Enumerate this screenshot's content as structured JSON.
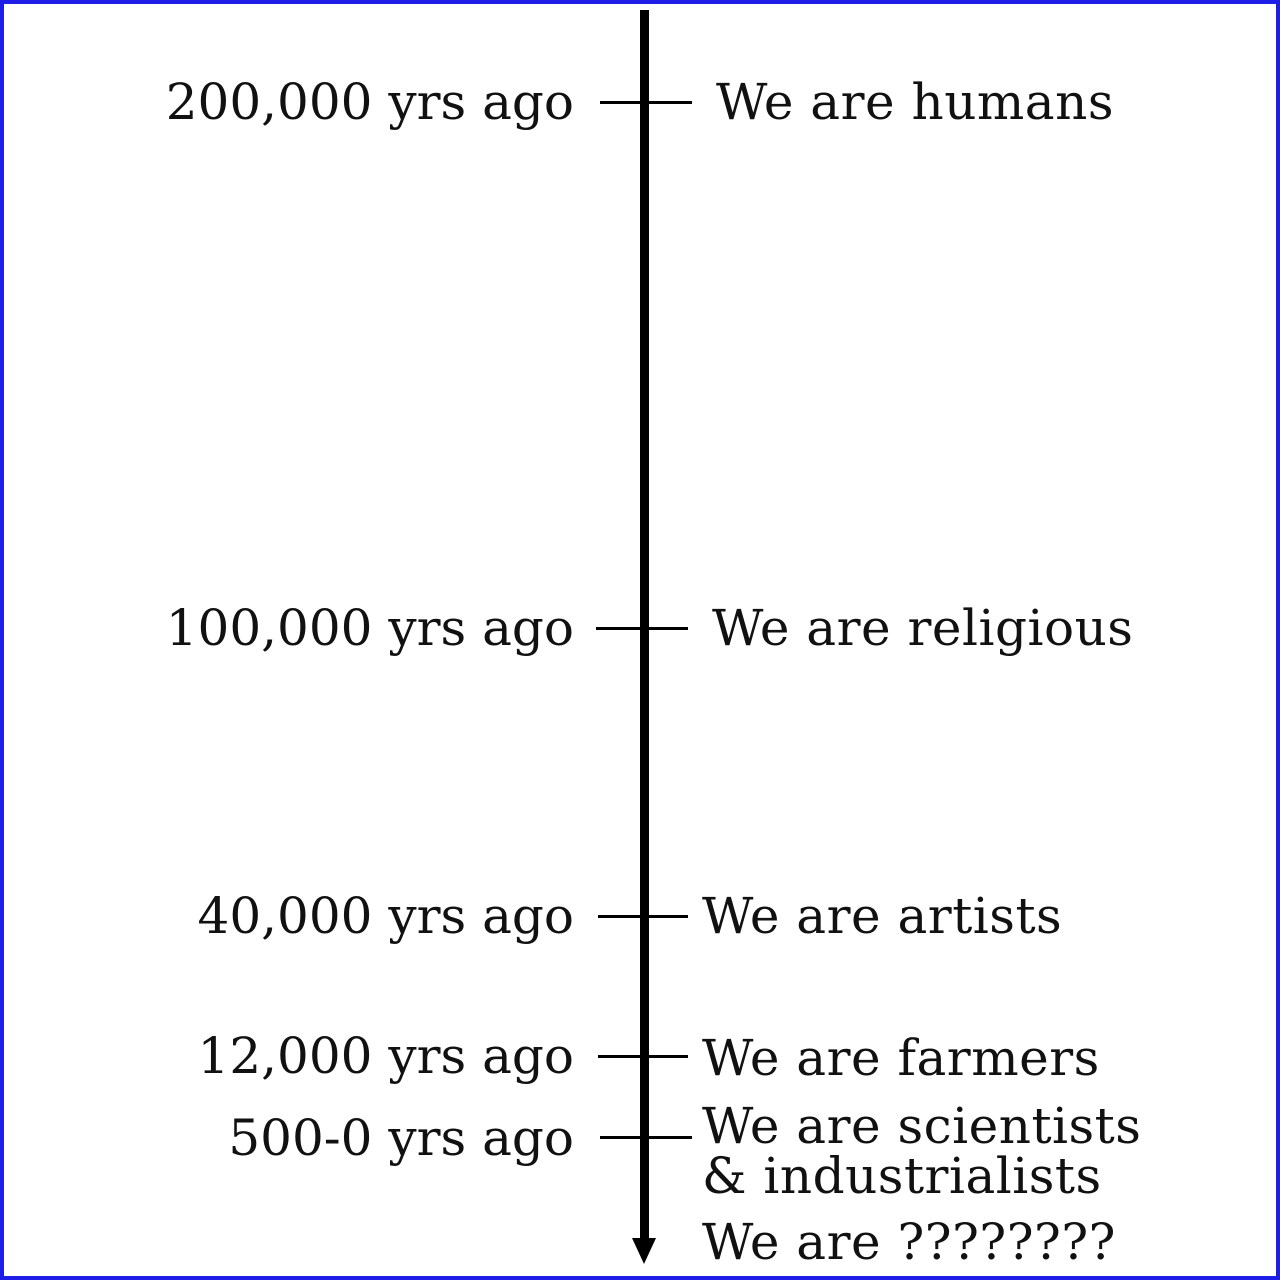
{
  "timeline": {
    "entries": [
      {
        "date": "200,000 yrs ago",
        "event": "We are humans"
      },
      {
        "date": "100,000 yrs ago",
        "event": "We are religious"
      },
      {
        "date": "40,000 yrs ago",
        "event": "We are artists"
      },
      {
        "date": "12,000 yrs ago",
        "event": "We are farmers"
      },
      {
        "date": "500-0 yrs ago",
        "event_line1": "We are scientists",
        "event_line2": "& industrialists"
      }
    ],
    "future": "We are ????????"
  },
  "colors": {
    "frame_border": "#1e1ee6",
    "axis": "#000000"
  }
}
